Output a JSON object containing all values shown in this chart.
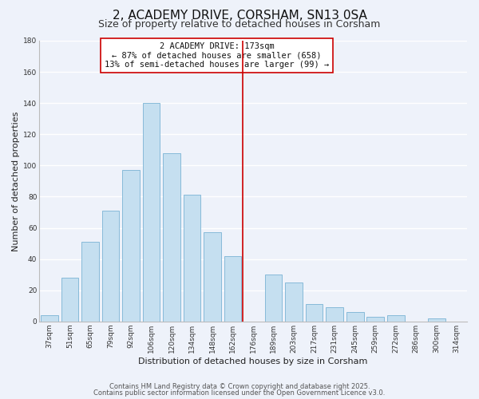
{
  "title": "2, ACADEMY DRIVE, CORSHAM, SN13 0SA",
  "subtitle": "Size of property relative to detached houses in Corsham",
  "xlabel": "Distribution of detached houses by size in Corsham",
  "ylabel": "Number of detached properties",
  "bar_labels": [
    "37sqm",
    "51sqm",
    "65sqm",
    "79sqm",
    "92sqm",
    "106sqm",
    "120sqm",
    "134sqm",
    "148sqm",
    "162sqm",
    "176sqm",
    "189sqm",
    "203sqm",
    "217sqm",
    "231sqm",
    "245sqm",
    "259sqm",
    "272sqm",
    "286sqm",
    "300sqm",
    "314sqm"
  ],
  "bar_values": [
    4,
    28,
    51,
    71,
    97,
    140,
    108,
    81,
    57,
    42,
    0,
    30,
    25,
    11,
    9,
    6,
    3,
    4,
    0,
    2,
    0
  ],
  "bar_color": "#c5dff0",
  "bar_edge_color": "#7ab3d4",
  "ylim": [
    0,
    180
  ],
  "yticks": [
    0,
    20,
    40,
    60,
    80,
    100,
    120,
    140,
    160,
    180
  ],
  "annotation_title": "2 ACADEMY DRIVE: 173sqm",
  "annotation_line1": "← 87% of detached houses are smaller (658)",
  "annotation_line2": "13% of semi-detached houses are larger (99) →",
  "vline_color": "#cc0000",
  "footer1": "Contains HM Land Registry data © Crown copyright and database right 2025.",
  "footer2": "Contains public sector information licensed under the Open Government Licence v3.0.",
  "background_color": "#eef2fa",
  "grid_color": "#ffffff",
  "title_fontsize": 11,
  "subtitle_fontsize": 9,
  "axis_label_fontsize": 8,
  "tick_fontsize": 6.5,
  "annotation_fontsize": 7.5,
  "footer_fontsize": 6
}
